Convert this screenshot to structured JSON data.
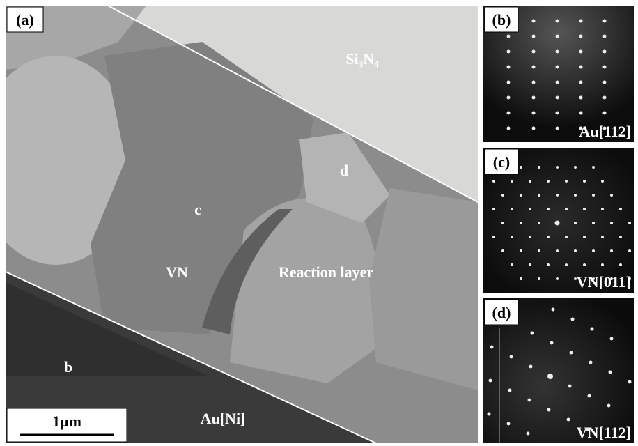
{
  "panel_a": {
    "label": "(a)",
    "regions": {
      "si3n4": "Si₃N₄",
      "d": "d",
      "c": "c",
      "vn": "VN",
      "reaction": "Reaction layer",
      "b": "b",
      "au": "Au[Ni]"
    },
    "scale_bar": "1μm"
  },
  "panel_b": {
    "label": "(b)",
    "zone": "Au[112]"
  },
  "panel_c": {
    "label": "(c)",
    "zone": "VN[011]"
  },
  "panel_d": {
    "label": "(d)",
    "zone": "VN[112]"
  }
}
